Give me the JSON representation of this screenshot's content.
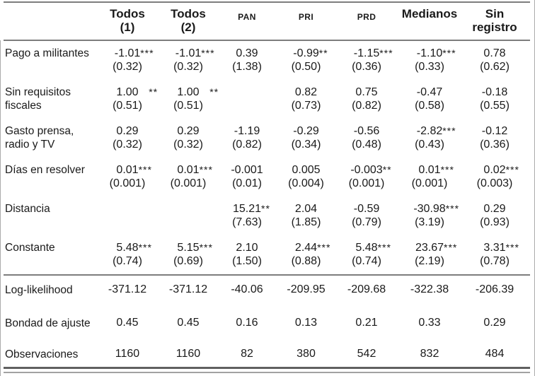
{
  "table": {
    "header": {
      "corner": "",
      "columns": [
        {
          "line1": "Todos",
          "line2": "(1)",
          "size": "large"
        },
        {
          "line1": "Todos",
          "line2": "(2)",
          "size": "large"
        },
        {
          "line1": "PAN",
          "line2": "",
          "size": "small"
        },
        {
          "line1": "PRI",
          "line2": "",
          "size": "small"
        },
        {
          "line1": "PRD",
          "line2": "",
          "size": "small"
        },
        {
          "line1": "Medianos",
          "line2": "",
          "size": "large"
        },
        {
          "line1": "Sin",
          "line2": "registro",
          "size": "large"
        }
      ]
    },
    "rows": [
      {
        "label": "Pago a militantes",
        "cells": [
          {
            "c": "-1.01",
            "s": "***",
            "e": "(0.32)"
          },
          {
            "c": "-1.01",
            "s": "***",
            "e": "(0.32)"
          },
          {
            "c": "0.39",
            "s": "",
            "e": "(1.38)"
          },
          {
            "c": "-0.99",
            "s": "**",
            "e": "(0.50)"
          },
          {
            "c": "-1.15",
            "s": "***",
            "e": "(0.36)"
          },
          {
            "c": "-1.10",
            "s": "***",
            "e": "(0.33)"
          },
          {
            "c": "0.78",
            "s": "",
            "e": "(0.62)"
          }
        ]
      },
      {
        "label": "Sin requisitos fiscales",
        "cells": [
          {
            "c": "1.00",
            "s": "   **",
            "e": "(0.51)"
          },
          {
            "c": "1.00",
            "s": "   **",
            "e": "(0.51)"
          },
          {
            "c": "",
            "s": "",
            "e": ""
          },
          {
            "c": "0.82",
            "s": "",
            "e": "(0.73)"
          },
          {
            "c": "0.75",
            "s": "",
            "e": "(0.82)"
          },
          {
            "c": "-0.47",
            "s": "",
            "e": "(0.58)"
          },
          {
            "c": "-0.18",
            "s": "",
            "e": "(0.55)"
          }
        ]
      },
      {
        "label": "Gasto prensa, radio y TV",
        "cells": [
          {
            "c": "0.29",
            "s": "",
            "e": "(0.32)"
          },
          {
            "c": "0.29",
            "s": "",
            "e": "(0.32)"
          },
          {
            "c": "-1.19",
            "s": "",
            "e": "(0.82)"
          },
          {
            "c": "-0.29",
            "s": "",
            "e": "(0.34)"
          },
          {
            "c": "-0.56",
            "s": "",
            "e": "(0.48)"
          },
          {
            "c": "-2.82",
            "s": "***",
            "e": "(0.43)"
          },
          {
            "c": "-0.12",
            "s": "",
            "e": "(0.36)"
          }
        ]
      },
      {
        "label": "Días en resolver",
        "cells": [
          {
            "c": "0.01",
            "s": "***",
            "e": "(0.001)"
          },
          {
            "c": "0.01",
            "s": "***",
            "e": "(0.001)"
          },
          {
            "c": "-0.001",
            "s": "",
            "e": "(0.01)"
          },
          {
            "c": "0.005",
            "s": "",
            "e": "(0.004)"
          },
          {
            "c": "-0.003",
            "s": "**",
            "e": "(0.001)"
          },
          {
            "c": "0.01",
            "s": "***",
            "e": "(0.001)"
          },
          {
            "c": "0.02",
            "s": "***",
            "e": "(0.003)"
          }
        ]
      },
      {
        "label": "Distancia",
        "cells": [
          {
            "c": "",
            "s": "",
            "e": ""
          },
          {
            "c": "",
            "s": "",
            "e": ""
          },
          {
            "c": "15.21",
            "s": "**",
            "e": "(7.63)"
          },
          {
            "c": "2.04",
            "s": "",
            "e": "(1.85)"
          },
          {
            "c": "-0.59",
            "s": "",
            "e": "(0.79)"
          },
          {
            "c": "-30.98",
            "s": "***",
            "e": "(3.19)"
          },
          {
            "c": "0.29",
            "s": "",
            "e": "(0.93)"
          }
        ]
      },
      {
        "label": "Constante",
        "cells": [
          {
            "c": "5.48",
            "s": "***",
            "e": "(0.74)"
          },
          {
            "c": "5.15",
            "s": "***",
            "e": "(0.69)"
          },
          {
            "c": "2.10",
            "s": "",
            "e": "(1.50)"
          },
          {
            "c": "2.44",
            "s": "***",
            "e": "(0.88)"
          },
          {
            "c": "5.48",
            "s": "***",
            "e": "(0.74)"
          },
          {
            "c": "23.67",
            "s": "***",
            "e": "(2.19)"
          },
          {
            "c": "3.31",
            "s": "***",
            "e": "(0.78)"
          }
        ]
      }
    ],
    "stats": [
      {
        "label": "Log-likelihood",
        "values": [
          "-371.12",
          "-371.12",
          "-40.06",
          "-209.95",
          "-209.68",
          "-322.38",
          "-206.39"
        ]
      },
      {
        "label": "Bondad de ajuste",
        "values": [
          "0.45",
          "0.45",
          "0.16",
          "0.13",
          "0.21",
          "0.33",
          "0.29"
        ]
      },
      {
        "label": "Observaciones",
        "values": [
          "1160",
          "1160",
          "82",
          "380",
          "542",
          "832",
          "484"
        ]
      }
    ],
    "colors": {
      "text": "#1a1a1a",
      "rule": "#7d7d7d",
      "rule_dark": "#606060",
      "rule_light": "#a2a2a2",
      "edge": "#ababab"
    }
  }
}
